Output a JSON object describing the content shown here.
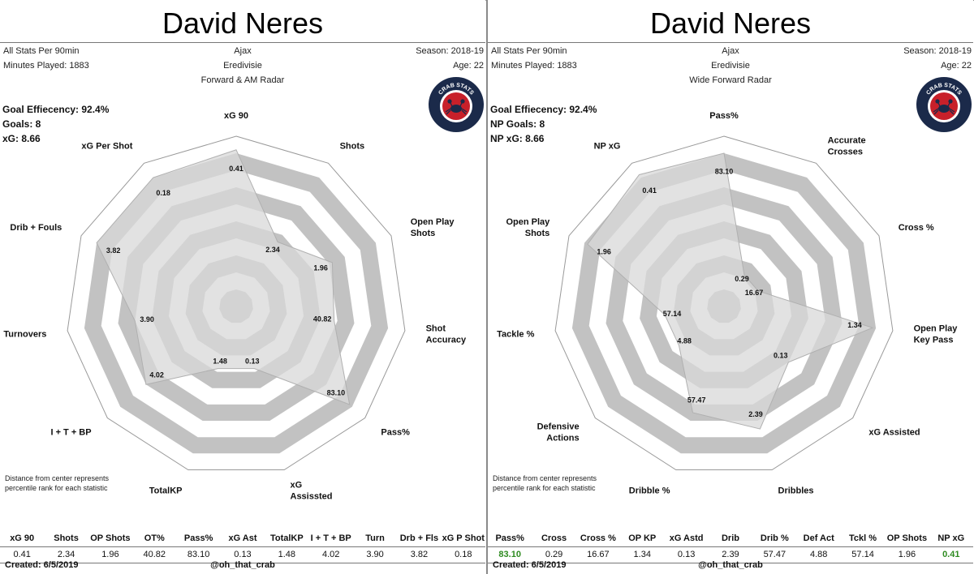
{
  "colors": {
    "ring_dark": "#c2c2c2",
    "ring_light": "#ffffff",
    "shape_fill": "#d8d8d8",
    "highlight_green": "#2e8b20"
  },
  "panels": [
    {
      "title": "David Neres",
      "left_info": [
        "All Stats Per 90min",
        "Minutes Played: 1883"
      ],
      "center_info": [
        "Ajax",
        "Eredivisie",
        "Forward & AM Radar"
      ],
      "right_info": [
        "Season: 2018-19",
        "Age: 22"
      ],
      "goal_info": [
        "Goal Effiecency: 92.4%",
        "Goals: 8",
        "xG: 8.66"
      ],
      "logo_text": "CRAB STATS",
      "logo_icon": "crab-icon",
      "note": "Distance from center represents percentile rank for each statistic",
      "stats_headers": [
        "xG 90",
        "Shots",
        "OP Shots",
        "OT%",
        "Pass%",
        "xG Ast",
        "TotalKP",
        "I + T + BP",
        "Turn",
        "Drb + Fls",
        "xG P Shot"
      ],
      "stats_values": [
        "0.41",
        "2.34",
        "1.96",
        "40.82",
        "83.10",
        "0.13",
        "1.48",
        "4.02",
        "3.90",
        "3.82",
        "0.18"
      ],
      "highlight": [],
      "footer_left": "Created: 6/5/2019",
      "footer_center": "@oh_that_crab"
    },
    {
      "title": "David Neres",
      "left_info": [
        "All Stats Per 90min",
        "Minutes Played: 1883"
      ],
      "center_info": [
        "Ajax",
        "Eredivisie",
        "Wide Forward Radar"
      ],
      "right_info": [
        "Season: 2018-19",
        "Age: 22"
      ],
      "goal_info": [
        "Goal Effiecency: 92.4%",
        "NP Goals: 8",
        "NP xG: 8.66"
      ],
      "logo_text": "CRAB STATS",
      "logo_icon": "crab-icon",
      "note": "Distance from center represents percentile rank for each statistic",
      "stats_headers": [
        "Pass%",
        "Cross",
        "Cross %",
        "OP KP",
        "xG Astd",
        "Drib",
        "Drib %",
        "Def Act",
        "Tckl %",
        "OP Shots",
        "NP xG"
      ],
      "stats_values": [
        "83.10",
        "0.29",
        "16.67",
        "1.34",
        "0.13",
        "2.39",
        "57.47",
        "4.88",
        "57.14",
        "1.96",
        "0.41"
      ],
      "highlight": [
        0,
        10
      ],
      "footer_left": "Created: 6/5/2019",
      "footer_center": "@oh_that_crab"
    }
  ],
  "chart_data": [
    {
      "type": "radar",
      "scale": "percentile",
      "rlim": [
        0,
        100
      ],
      "categories": [
        "xG 90",
        "Shots",
        "Open Play\nShots",
        "Shot\nAccuracy",
        "Pass%",
        "xG\nAssissted",
        "TotalKP",
        "I + T + BP",
        "Turnovers",
        "Drib + Fouls",
        "xG Per Shot"
      ],
      "values": [
        0.41,
        2.34,
        1.96,
        40.82,
        83.1,
        0.13,
        1.48,
        4.02,
        3.9,
        3.82,
        0.18
      ],
      "value_labels": [
        "0.41",
        "2.34",
        "1.96",
        "40.82",
        "83.10",
        "0.13",
        "1.48",
        "4.02",
        "3.90",
        "3.82",
        "0.18"
      ],
      "percentiles": [
        92,
        45,
        62,
        58,
        88,
        38,
        38,
        70,
        60,
        90,
        90
      ]
    },
    {
      "type": "radar",
      "scale": "percentile",
      "rlim": [
        0,
        100
      ],
      "categories": [
        "Pass%",
        "Accurate\nCrosses",
        "Cross %",
        "Open Play\nKey Pass",
        "xG Assisted",
        "Dribbles",
        "Dribble %",
        "Defensive\nActions",
        "Tackle %",
        "Open Play\nShots",
        "NP xG"
      ],
      "values": [
        83.1,
        0.29,
        16.67,
        1.34,
        0.13,
        2.39,
        57.47,
        4.88,
        57.14,
        1.96,
        0.41
      ],
      "value_labels": [
        "83.10",
        "0.29",
        "16.67",
        "1.34",
        "0.13",
        "2.39",
        "57.47",
        "4.88",
        "57.14",
        "1.96",
        "0.41"
      ],
      "percentiles": [
        90,
        22,
        22,
        88,
        50,
        75,
        65,
        35,
        35,
        88,
        92
      ]
    }
  ]
}
